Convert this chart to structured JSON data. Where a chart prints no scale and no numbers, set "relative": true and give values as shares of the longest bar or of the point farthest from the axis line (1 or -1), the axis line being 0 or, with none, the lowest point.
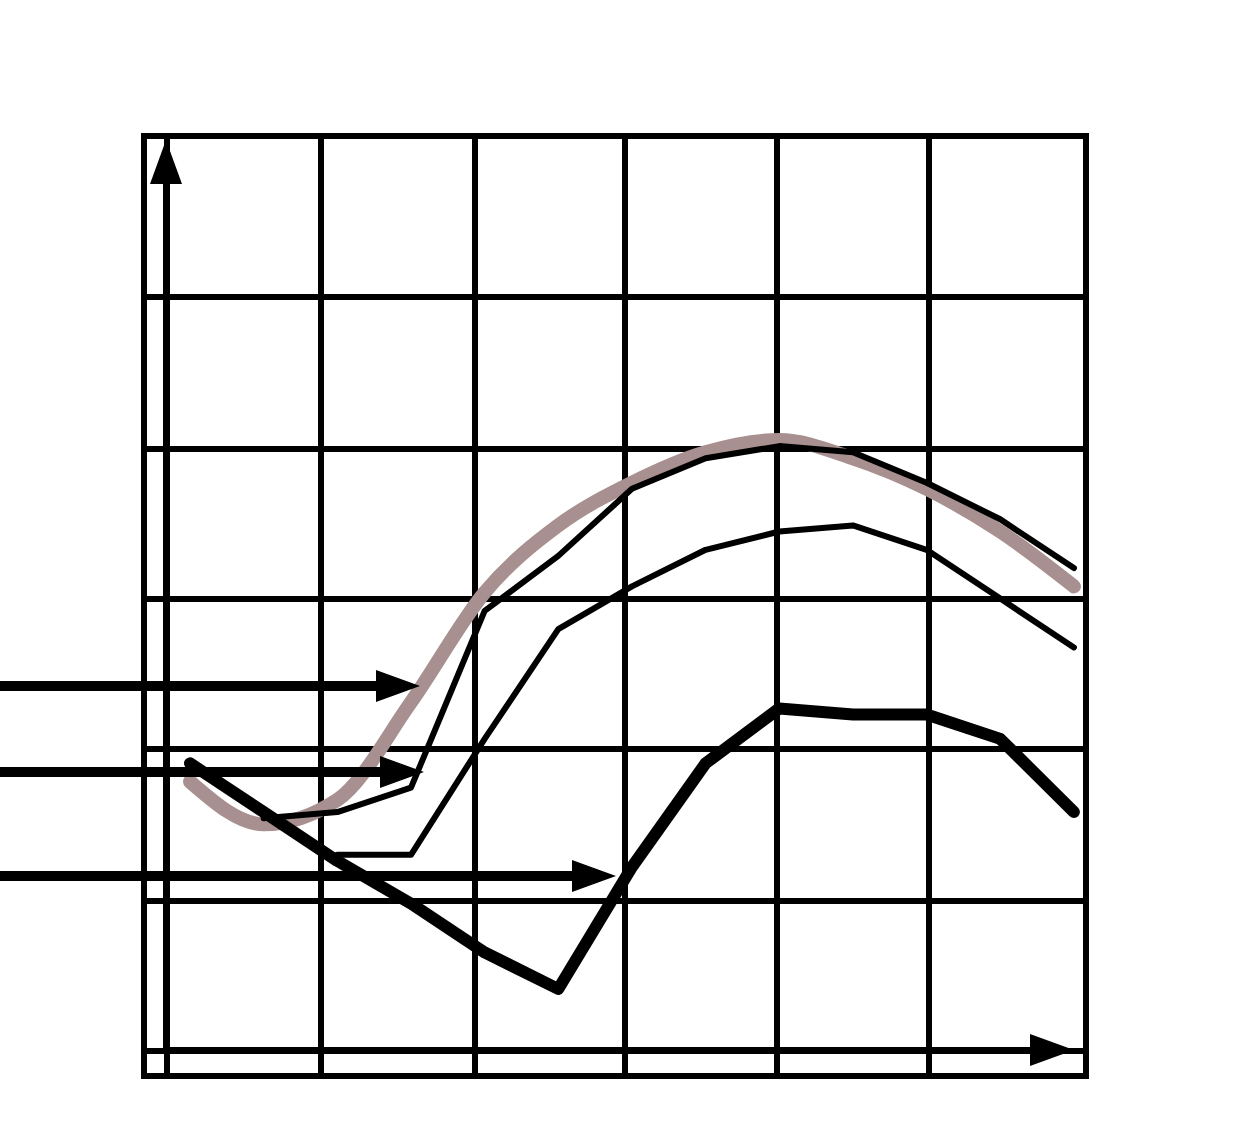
{
  "chart_data": {
    "type": "line",
    "relative": true,
    "grid": true,
    "line_style": "solid",
    "marker": "none",
    "categories": [
      null,
      null,
      null,
      null,
      null,
      null,
      null,
      null,
      null,
      null,
      null,
      null,
      null
    ],
    "series": [
      {
        "color": "#a89090",
        "values": [
          0.44,
          0.37,
          0.41,
          0.57,
          0.75,
          0.86,
          0.93,
          0.98,
          1.0,
          0.97,
          0.92,
          0.85,
          0.76
        ]
      },
      {
        "color": "#000000",
        "values": [
          null,
          0.38,
          0.39,
          0.43,
          0.72,
          0.81,
          0.92,
          0.97,
          0.99,
          0.98,
          0.93,
          0.87,
          0.79
        ]
      },
      {
        "color": "#000000",
        "values": [
          null,
          null,
          0.32,
          0.32,
          0.51,
          0.69,
          0.76,
          0.82,
          0.85,
          0.86,
          0.82,
          0.74,
          0.66
        ]
      },
      {
        "color": "#000000",
        "values": [
          0.47,
          0.39,
          0.31,
          0.24,
          0.16,
          0.1,
          0.3,
          0.47,
          0.56,
          0.55,
          0.55,
          0.51,
          0.39
        ]
      }
    ]
  }
}
